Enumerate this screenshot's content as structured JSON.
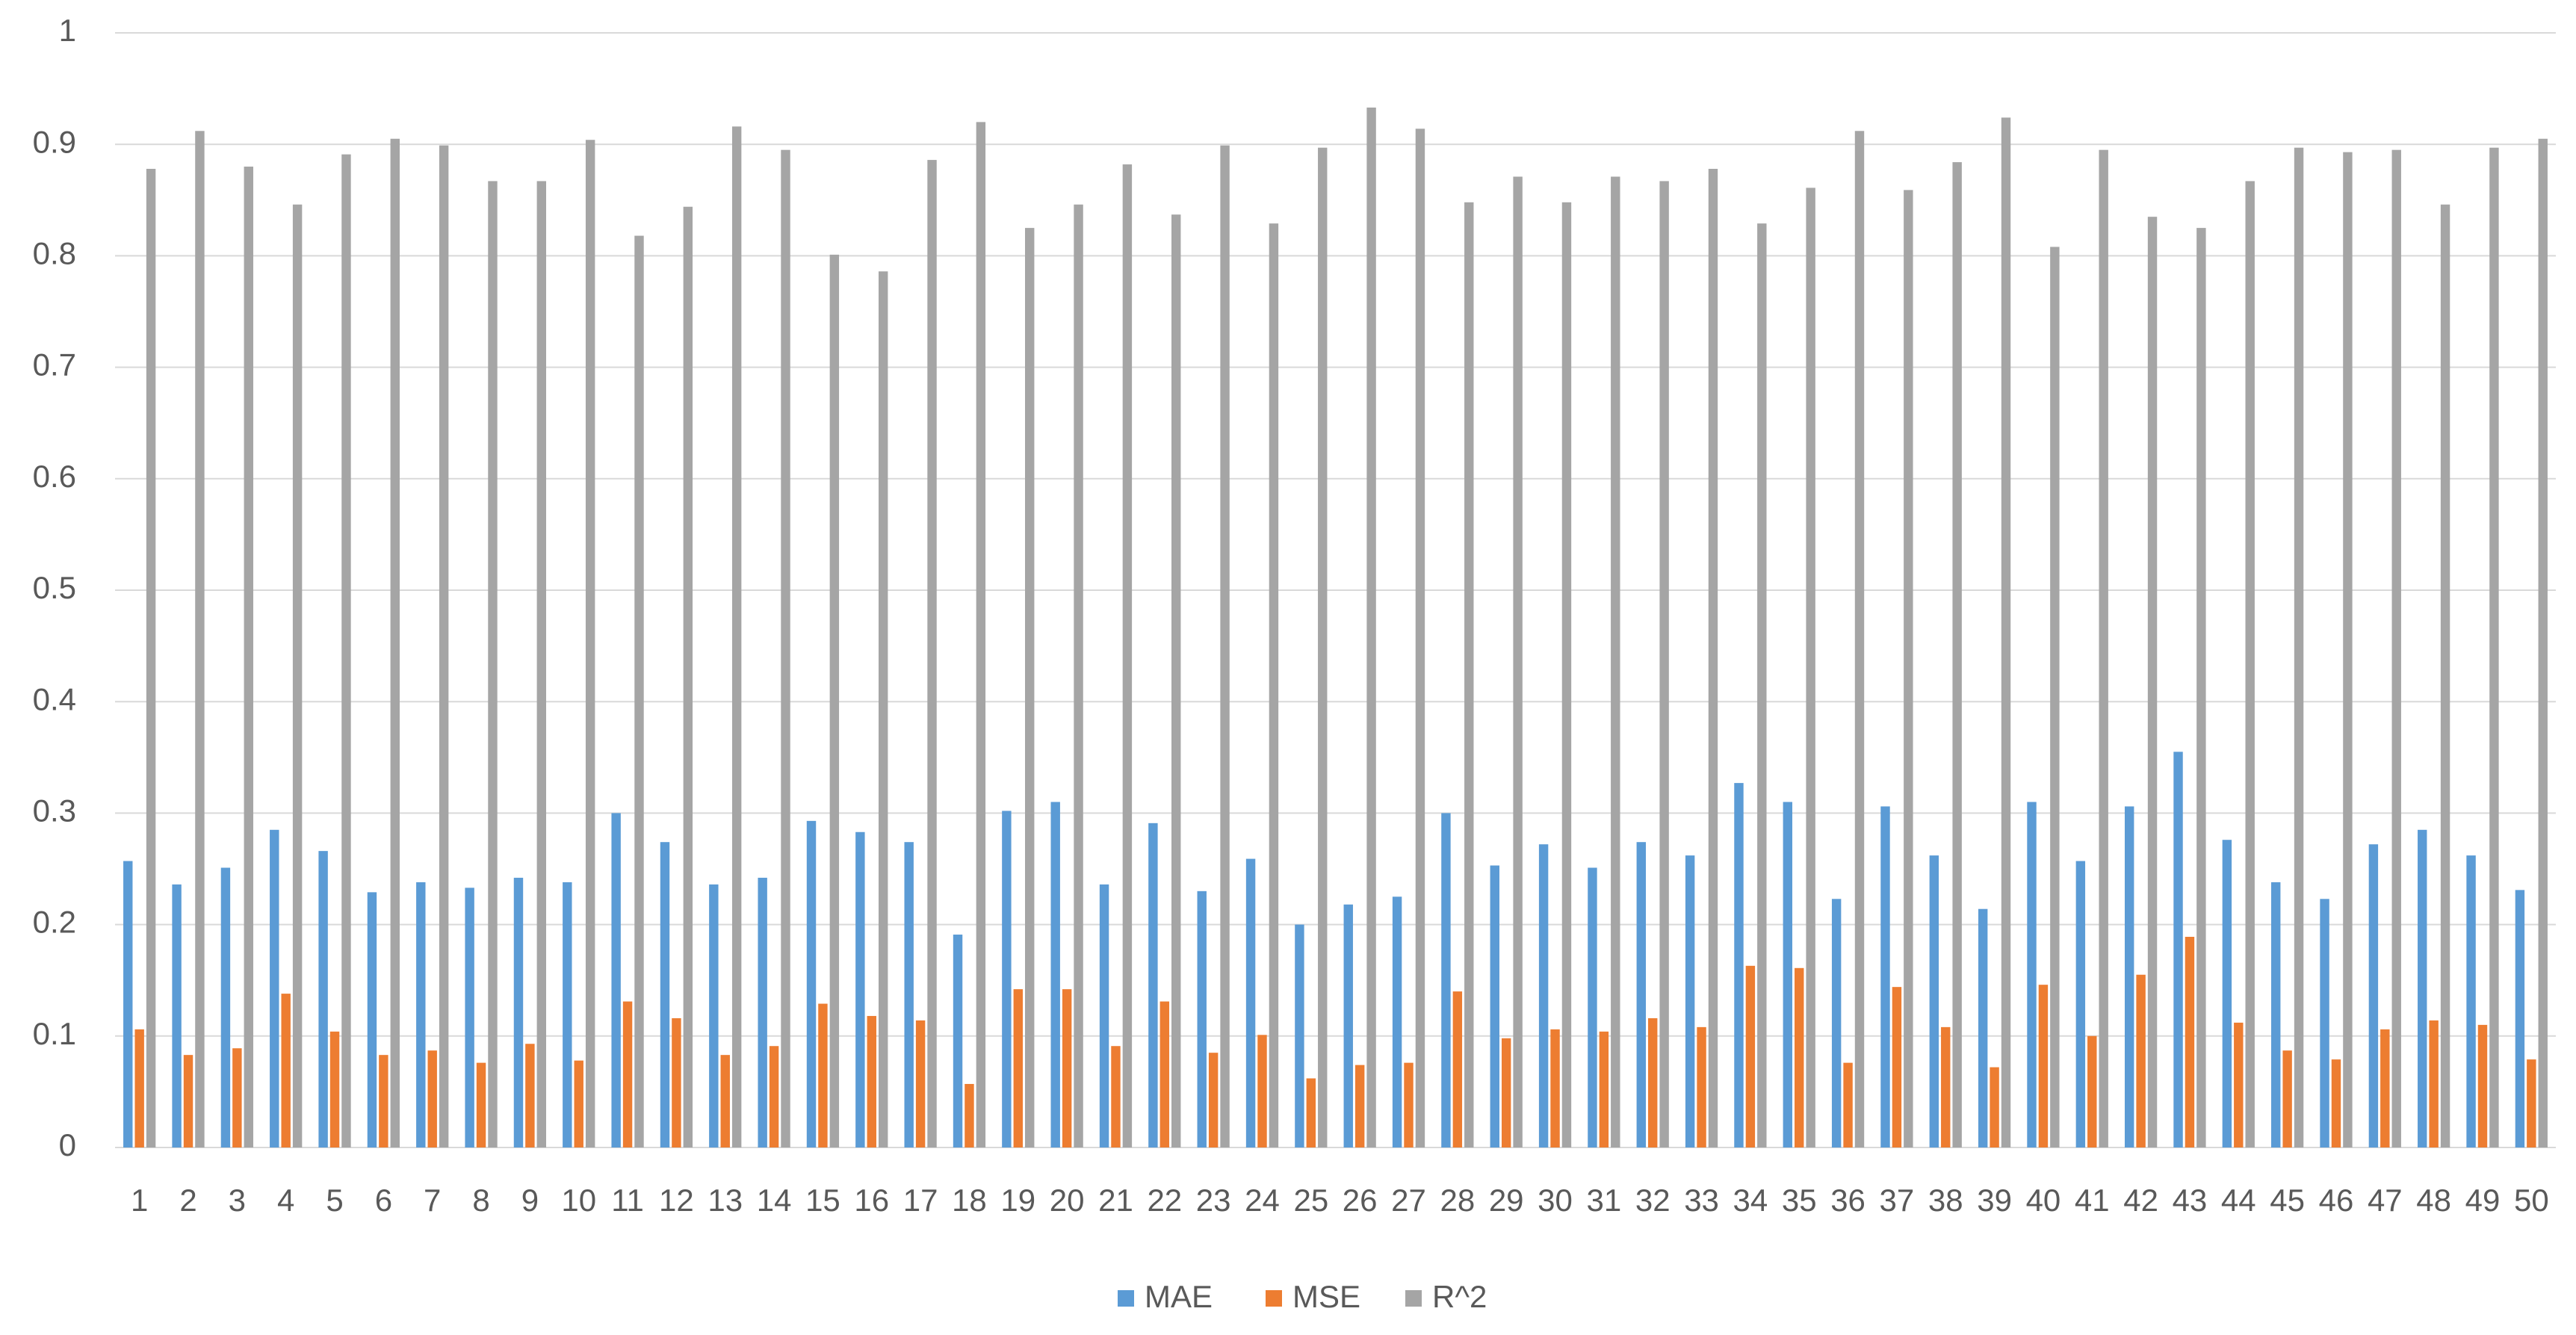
{
  "chart_data": {
    "type": "bar",
    "categories": [
      "1",
      "2",
      "3",
      "4",
      "5",
      "6",
      "7",
      "8",
      "9",
      "10",
      "11",
      "12",
      "13",
      "14",
      "15",
      "16",
      "17",
      "18",
      "19",
      "20",
      "21",
      "22",
      "23",
      "24",
      "25",
      "26",
      "27",
      "28",
      "29",
      "30",
      "31",
      "32",
      "33",
      "34",
      "35",
      "36",
      "37",
      "38",
      "39",
      "40",
      "41",
      "42",
      "43",
      "44",
      "45",
      "46",
      "47",
      "48",
      "49",
      "50"
    ],
    "series": [
      {
        "name": "MAE",
        "color": "#5b9bd5",
        "values": [
          0.257,
          0.236,
          0.251,
          0.285,
          0.266,
          0.229,
          0.238,
          0.233,
          0.242,
          0.238,
          0.3,
          0.274,
          0.236,
          0.242,
          0.293,
          0.283,
          0.274,
          0.191,
          0.302,
          0.31,
          0.236,
          0.291,
          0.23,
          0.259,
          0.2,
          0.218,
          0.225,
          0.3,
          0.253,
          0.272,
          0.251,
          0.274,
          0.262,
          0.327,
          0.31,
          0.223,
          0.306,
          0.262,
          0.214,
          0.31,
          0.257,
          0.306,
          0.355,
          0.276,
          0.238,
          0.223,
          0.272,
          0.285,
          0.262,
          0.231
        ]
      },
      {
        "name": "MSE",
        "color": "#ed7d31",
        "values": [
          0.106,
          0.083,
          0.089,
          0.138,
          0.104,
          0.083,
          0.087,
          0.076,
          0.093,
          0.078,
          0.131,
          0.116,
          0.083,
          0.091,
          0.129,
          0.118,
          0.114,
          0.057,
          0.142,
          0.142,
          0.091,
          0.131,
          0.085,
          0.101,
          0.062,
          0.074,
          0.076,
          0.14,
          0.098,
          0.106,
          0.104,
          0.116,
          0.108,
          0.163,
          0.161,
          0.076,
          0.144,
          0.108,
          0.072,
          0.146,
          0.1,
          0.155,
          0.189,
          0.112,
          0.087,
          0.079,
          0.106,
          0.114,
          0.11,
          0.079
        ]
      },
      {
        "name": "R^2",
        "color": "#a5a5a5",
        "values": [
          0.878,
          0.912,
          0.88,
          0.846,
          0.891,
          0.905,
          0.899,
          0.867,
          0.867,
          0.904,
          0.818,
          0.844,
          0.916,
          0.895,
          0.801,
          0.786,
          0.886,
          0.92,
          0.825,
          0.846,
          0.882,
          0.837,
          0.899,
          0.829,
          0.897,
          0.933,
          0.914,
          0.848,
          0.871,
          0.848,
          0.871,
          0.867,
          0.878,
          0.829,
          0.861,
          0.912,
          0.859,
          0.884,
          0.924,
          0.808,
          0.895,
          0.835,
          0.825,
          0.867,
          0.897,
          0.893,
          0.895,
          0.846,
          0.897,
          0.905
        ]
      }
    ],
    "ylim": [
      0,
      1
    ],
    "yticks": [
      0,
      0.1,
      0.2,
      0.3,
      0.4,
      0.5,
      0.6,
      0.7,
      0.8,
      0.9,
      1
    ],
    "grid": true,
    "legend": "bottom"
  }
}
